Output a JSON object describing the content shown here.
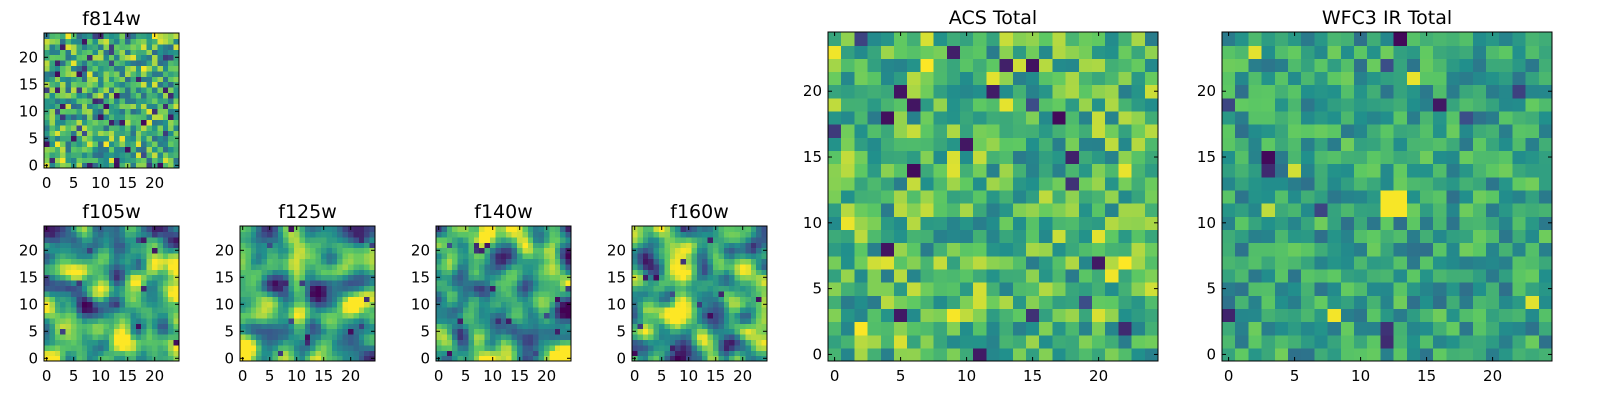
{
  "colormap": {
    "name": "viridis",
    "stops": [
      "#440154",
      "#3b528b",
      "#21908c",
      "#5ec962",
      "#fde725"
    ]
  },
  "chart_data": [
    {
      "type": "heatmap",
      "title": "f814w",
      "shape": [
        25,
        25
      ],
      "xlim": [
        -0.5,
        24.5
      ],
      "ylim": [
        -0.5,
        24.5
      ],
      "xticks": [
        0,
        5,
        10,
        15,
        20
      ],
      "yticks": [
        0,
        5,
        10,
        15,
        20
      ],
      "texture": "uncorrelated pixel noise",
      "seed": 11,
      "smooth": 0,
      "level": 0.62,
      "spread": 0.16,
      "dark_pixels": 55,
      "bright_pixels": 35,
      "blobs": []
    },
    {
      "type": "heatmap",
      "title": "f105w",
      "shape": [
        25,
        25
      ],
      "xlim": [
        -0.5,
        24.5
      ],
      "ylim": [
        -0.5,
        24.5
      ],
      "xticks": [
        0,
        5,
        10,
        15,
        20
      ],
      "yticks": [
        0,
        5,
        10,
        15,
        20
      ],
      "texture": "correlated noise",
      "seed": 23,
      "smooth": 2,
      "level": 0.6,
      "spread": 0.22,
      "dark_pixels": 14,
      "bright_pixels": 0,
      "blobs": []
    },
    {
      "type": "heatmap",
      "title": "f125w",
      "shape": [
        25,
        25
      ],
      "xlim": [
        -0.5,
        24.5
      ],
      "ylim": [
        -0.5,
        24.5
      ],
      "xticks": [
        0,
        5,
        10,
        15,
        20
      ],
      "yticks": [
        0,
        5,
        10,
        15,
        20
      ],
      "texture": "correlated noise",
      "seed": 37,
      "smooth": 2,
      "level": 0.58,
      "spread": 0.22,
      "dark_pixels": 14,
      "bright_pixels": 0,
      "blobs": []
    },
    {
      "type": "heatmap",
      "title": "f140w",
      "shape": [
        25,
        25
      ],
      "xlim": [
        -0.5,
        24.5
      ],
      "ylim": [
        -0.5,
        24.5
      ],
      "xticks": [
        0,
        5,
        10,
        15,
        20
      ],
      "yticks": [
        0,
        5,
        10,
        15,
        20
      ],
      "texture": "correlated noise",
      "seed": 41,
      "smooth": 2,
      "level": 0.58,
      "spread": 0.23,
      "dark_pixels": 16,
      "bright_pixels": 0,
      "blobs": []
    },
    {
      "type": "heatmap",
      "title": "f160w",
      "shape": [
        25,
        25
      ],
      "xlim": [
        -0.5,
        24.5
      ],
      "ylim": [
        -0.5,
        24.5
      ],
      "xticks": [
        0,
        5,
        10,
        15,
        20
      ],
      "yticks": [
        0,
        5,
        10,
        15,
        20
      ],
      "texture": "correlated noise",
      "seed": 53,
      "smooth": 2,
      "level": 0.6,
      "spread": 0.22,
      "dark_pixels": 14,
      "bright_pixels": 0,
      "blobs": []
    },
    {
      "type": "heatmap",
      "title": "ACS Total",
      "shape": [
        25,
        25
      ],
      "xlim": [
        -0.5,
        24.5
      ],
      "ylim": [
        -0.5,
        24.5
      ],
      "xticks": [
        0,
        5,
        10,
        15,
        20
      ],
      "yticks": [
        0,
        5,
        10,
        15,
        20
      ],
      "texture": "uncorrelated pixel noise",
      "seed": 67,
      "smooth": 0,
      "level": 0.66,
      "spread": 0.14,
      "dark_pixels": 22,
      "bright_pixels": 28,
      "blobs": []
    },
    {
      "type": "heatmap",
      "title": "WFC3 IR Total",
      "shape": [
        25,
        25
      ],
      "xlim": [
        -0.5,
        24.5
      ],
      "ylim": [
        -0.5,
        24.5
      ],
      "xticks": [
        0,
        5,
        10,
        15,
        20
      ],
      "yticks": [
        0,
        5,
        10,
        15,
        20
      ],
      "texture": "uncorrelated pixel noise",
      "seed": 79,
      "smooth": 0,
      "level": 0.58,
      "spread": 0.12,
      "dark_pixels": 12,
      "bright_pixels": 6,
      "blobs": [
        {
          "x": 12.5,
          "y": 11.5,
          "r": 1.2,
          "value": 0.99
        }
      ]
    }
  ]
}
